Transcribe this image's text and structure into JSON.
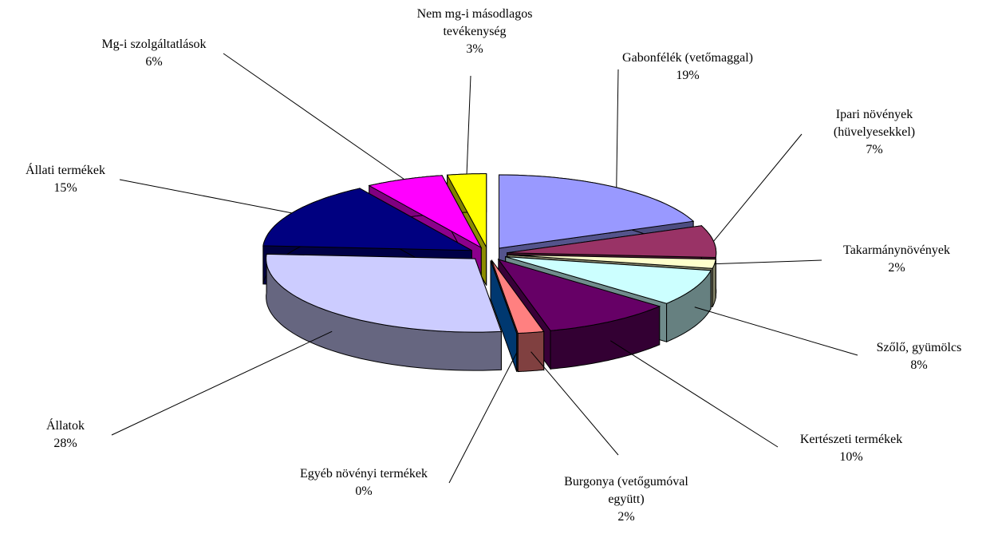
{
  "chart_data": {
    "type": "pie",
    "categories": [
      "Gabonfélék (vetőmaggal)",
      "Ipari növények (hüvelyesekkel)",
      "Takarmánynövények",
      "Szőlő, gyümölcs",
      "Kertészeti termékek",
      "Burgonya (vetőgumóval együtt)",
      "Egyéb növényi termékek",
      "Állatok",
      "Állati termékek",
      "Mg-i szolgáltatlások",
      "Nem mg-i másodlagos tevékenység"
    ],
    "values": [
      19,
      7,
      2,
      8,
      10,
      2,
      0,
      28,
      15,
      6,
      3
    ],
    "value_labels": [
      "19%",
      "7%",
      "2%",
      "8%",
      "10%",
      "2%",
      "0%",
      "28%",
      "15%",
      "6%",
      "3%"
    ],
    "colors": [
      "#9999ff",
      "#993366",
      "#ffffcc",
      "#ccffff",
      "#660066",
      "#ff8080",
      "#0066cc",
      "#ccccff",
      "#000080",
      "#ff00ff",
      "#ffff00"
    ]
  }
}
